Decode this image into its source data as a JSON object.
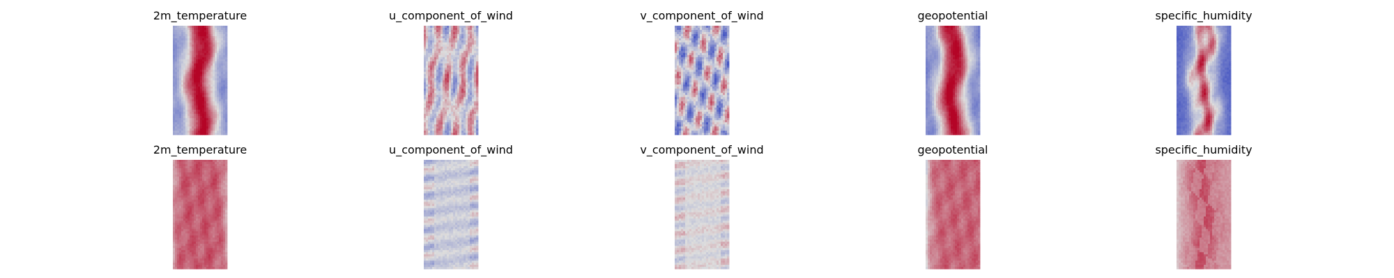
{
  "chart_data": {
    "type": "heatmap",
    "colormap": "coolwarm",
    "colors": {
      "low": "#3b4cc0",
      "mid": "#dddddd",
      "high": "#b40426"
    },
    "grid": "off",
    "axes": "off",
    "layout": "2 rows x 5 columns",
    "variables": [
      "2m_temperature",
      "u_component_of_wind",
      "v_component_of_wind",
      "geopotential",
      "specific_humidity"
    ],
    "rows": [
      {
        "panels": [
          {
            "title": "2m_temperature",
            "field": "warm_core",
            "level": 0.62,
            "contrast": 0.38
          },
          {
            "title": "u_component_of_wind",
            "field": "turbulent_bands",
            "level": 0.52,
            "contrast": 0.42
          },
          {
            "title": "v_component_of_wind",
            "field": "turbulent",
            "level": 0.43,
            "contrast": 0.34
          },
          {
            "title": "geopotential",
            "field": "warm_core",
            "level": 0.6,
            "contrast": 0.4
          },
          {
            "title": "specific_humidity",
            "field": "humid_core",
            "level": 0.35,
            "contrast": 0.6
          }
        ]
      },
      {
        "panels": [
          {
            "title": "2m_temperature",
            "field": "flat_warm",
            "level": 0.8,
            "contrast": 0.14
          },
          {
            "title": "u_component_of_wind",
            "field": "flat_noise",
            "level": 0.44,
            "contrast": 0.12
          },
          {
            "title": "v_component_of_wind",
            "field": "flat_noise",
            "level": 0.5,
            "contrast": 0.1
          },
          {
            "title": "geopotential",
            "field": "flat_warm_edge",
            "level": 0.78,
            "contrast": 0.16
          },
          {
            "title": "specific_humidity",
            "field": "flat_warm_core",
            "level": 0.66,
            "contrast": 0.16
          }
        ]
      }
    ]
  }
}
